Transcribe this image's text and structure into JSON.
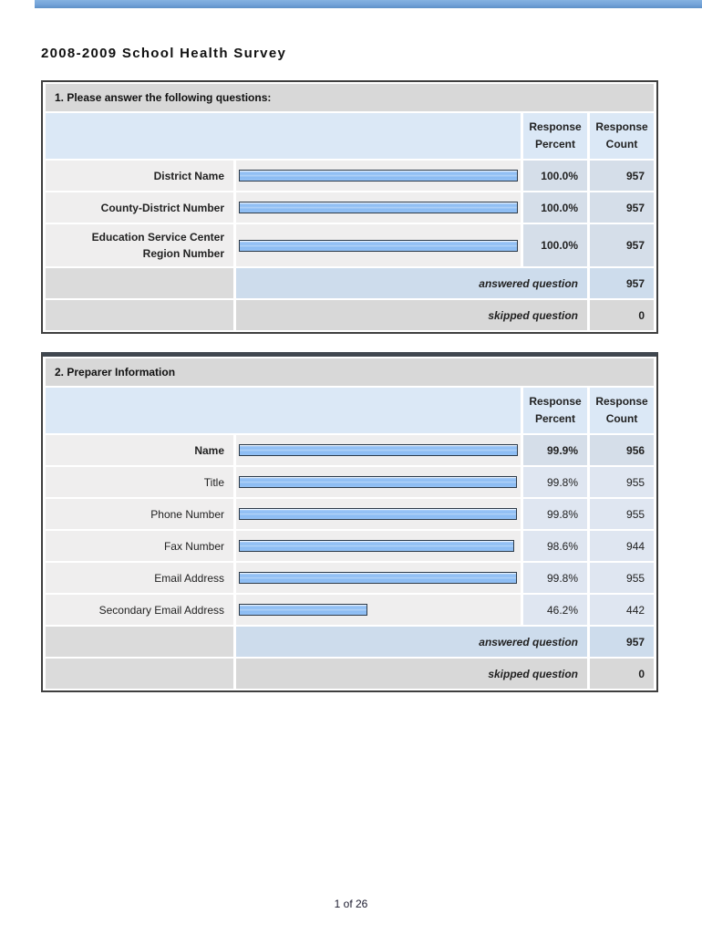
{
  "page": {
    "title": "2008-2009 School Health Survey",
    "footer": "1 of 26"
  },
  "colors": {
    "top-strip": "#74a4d9",
    "table-border": "#3f3f3f",
    "title-band": "#d8d8d8",
    "header-blue": "#dbe8f6",
    "row-gray": "#efeeee",
    "num-blue": "#dfe6f1",
    "num-blue-bold": "#d5dee9",
    "answered-blue": "#cddcec",
    "skipped-gray": "#d8d8d8",
    "side-gray": "#dbdbdb",
    "bar-fill": "#8bbcf3",
    "bar-fill-light": "#dcebfc",
    "bar-fill-mid": "#b3d3f8",
    "bar-border": "#2c3a49",
    "text": "#1c1c1c"
  },
  "tables": [
    {
      "title": "1. Please answer the following questions:",
      "headers": {
        "percent": "Response Percent",
        "count": "Response Count"
      },
      "rows": [
        {
          "label": "District Name",
          "percent": "100.0%",
          "count": "957"
        },
        {
          "label": "County-District Number",
          "percent": "100.0%",
          "count": "957"
        },
        {
          "label": "Education Service Center Region Number",
          "percent": "100.0%",
          "count": "957"
        }
      ],
      "answered": {
        "label": "answered question",
        "count": "957"
      },
      "skipped": {
        "label": "skipped question",
        "count": "0"
      }
    },
    {
      "title": "2. Preparer Information",
      "headers": {
        "percent": "Response Percent",
        "count": "Response Count"
      },
      "rows": [
        {
          "label": "Name",
          "percent": "99.9%",
          "count": "956"
        },
        {
          "label": "Title",
          "percent": "99.8%",
          "count": "955"
        },
        {
          "label": "Phone Number",
          "percent": "99.8%",
          "count": "955"
        },
        {
          "label": "Fax Number",
          "percent": "98.6%",
          "count": "944"
        },
        {
          "label": "Email Address",
          "percent": "99.8%",
          "count": "955"
        },
        {
          "label": "Secondary Email Address",
          "percent": "46.2%",
          "count": "442"
        }
      ],
      "answered": {
        "label": "answered question",
        "count": "957"
      },
      "skipped": {
        "label": "skipped question",
        "count": "0"
      }
    }
  ]
}
